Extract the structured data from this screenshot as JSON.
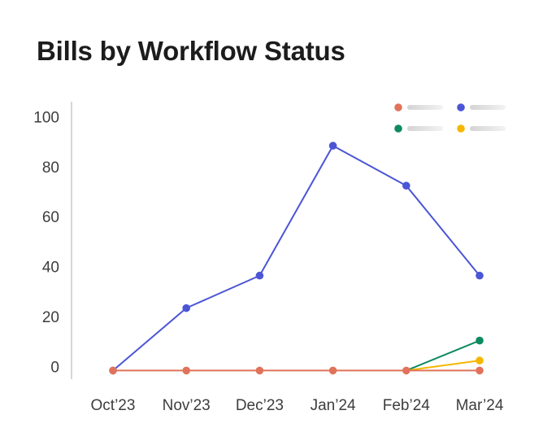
{
  "title": "Bills by Workflow Status",
  "chart_data": {
    "type": "line",
    "title": "Bills by Workflow Status",
    "xlabel": "",
    "ylabel": "",
    "categories": [
      "Oct’23",
      "Nov’23",
      "Dec’23",
      "Jan’24",
      "Feb’24",
      "Mar’24"
    ],
    "yticks": [
      0,
      20,
      40,
      60,
      80,
      100
    ],
    "ylim": [
      -3,
      107
    ],
    "grid": false,
    "legend_position": "top-right",
    "legend_labels_visible": false,
    "series": [
      {
        "color": "#4b55d6",
        "values": [
          0,
          25,
          38,
          90,
          74,
          38
        ]
      },
      {
        "color": "#0d8a5f",
        "values": [
          null,
          null,
          null,
          null,
          0,
          12
        ]
      },
      {
        "color": "#f5b700",
        "values": [
          null,
          null,
          null,
          null,
          0,
          4
        ]
      },
      {
        "color": "#e0735a",
        "values": [
          0,
          0,
          0,
          0,
          0,
          0
        ]
      }
    ],
    "legend_order": [
      3,
      0,
      1,
      2
    ]
  }
}
